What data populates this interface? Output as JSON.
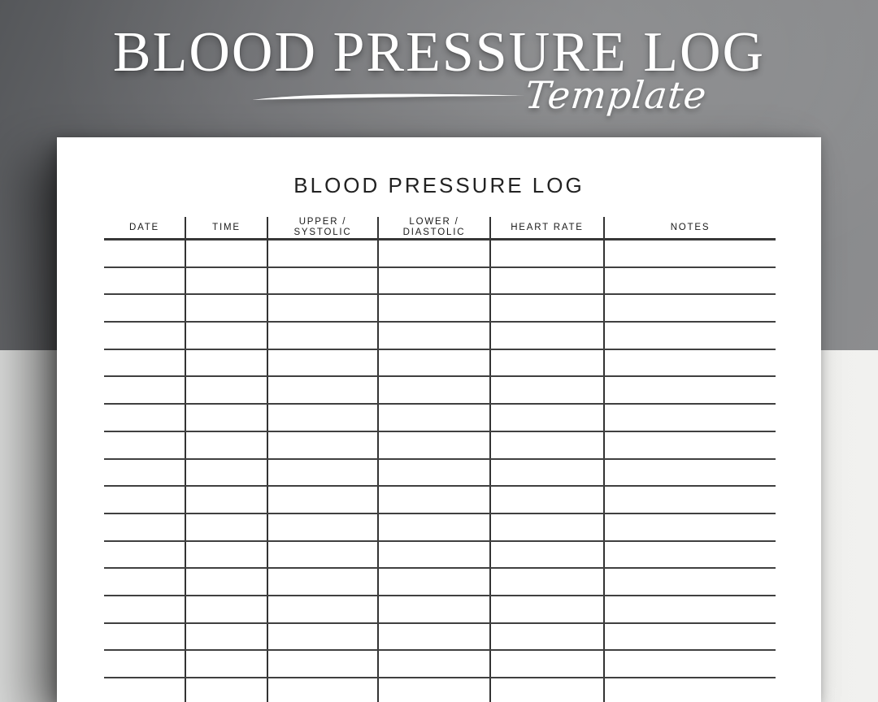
{
  "banner": {
    "title": "BLOOD PRESSURE LOG",
    "subtitle": "Template"
  },
  "document": {
    "title": "BLOOD PRESSURE LOG",
    "table": {
      "headers": [
        {
          "lines": [
            "DATE"
          ]
        },
        {
          "lines": [
            "TIME"
          ]
        },
        {
          "lines": [
            "UPPER /",
            "SYSTOLIC"
          ]
        },
        {
          "lines": [
            "LOWER /",
            "DIASTOLIC"
          ]
        },
        {
          "lines": [
            "HEART RATE"
          ]
        },
        {
          "lines": [
            "NOTES"
          ]
        }
      ],
      "visible_row_count": 17,
      "cell_values": []
    }
  },
  "colors": {
    "banner_text": "#ffffff",
    "band_top_dark": "#55575a",
    "band_top_light": "#8c8d8f",
    "band_bottom_light": "#f1f1ef",
    "paper": "#ffffff",
    "table_line": "#3a3a3a",
    "document_text": "#1a1a1a"
  }
}
